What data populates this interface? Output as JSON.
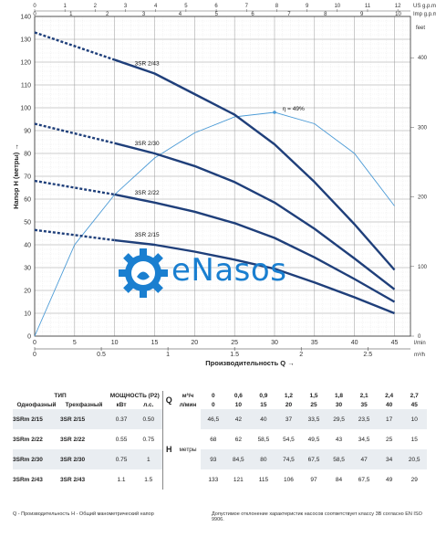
{
  "chart_data": {
    "type": "line",
    "x": [
      0,
      10,
      15,
      20,
      25,
      30,
      35,
      40,
      45
    ],
    "x_unit_primary": "l/min",
    "x_unit_secondary": "m³/h",
    "x_unit_us": "US g.p.m.",
    "x_unit_imp": "Imp g.p.m.",
    "ylabel": "Напор H (метры)",
    "xlabel": "Производительность Q",
    "right_unit": "feet",
    "ylim": [
      0,
      140
    ],
    "xlim": [
      0,
      47
    ],
    "y_ticks": [
      0,
      10,
      20,
      30,
      40,
      50,
      60,
      70,
      80,
      90,
      100,
      110,
      120,
      130,
      140
    ],
    "x_ticks_lmin": [
      0,
      5,
      10,
      15,
      20,
      25,
      30,
      35,
      40,
      45
    ],
    "x_ticks_m3h": [
      "0",
      "0.5",
      "1",
      "1.5",
      "2",
      "2.5"
    ],
    "x_ticks_us": [
      "0",
      "1",
      "2",
      "3",
      "4",
      "5",
      "6",
      "7",
      "8",
      "9",
      "10",
      "11",
      "12"
    ],
    "x_ticks_imp": [
      "0",
      "1",
      "2",
      "3",
      "4",
      "5",
      "6",
      "7",
      "8",
      "9",
      "10"
    ],
    "feet_ticks": [
      "0",
      "100",
      "200",
      "300",
      "400"
    ],
    "grid": true,
    "series": [
      {
        "name": "3SR 2/15",
        "values": [
          46.5,
          42,
          40,
          37,
          33.5,
          29.5,
          23.5,
          17,
          10
        ],
        "color": "#1f3f7a"
      },
      {
        "name": "3SR 2/22",
        "values": [
          68,
          62,
          58.5,
          54.5,
          49.5,
          43,
          34.5,
          25,
          15
        ],
        "color": "#1f3f7a"
      },
      {
        "name": "3SR 2/30",
        "values": [
          93,
          84.5,
          80,
          74.5,
          67.5,
          58.5,
          47,
          34,
          20.5
        ],
        "color": "#1f3f7a"
      },
      {
        "name": "3SR 2/43",
        "values": [
          133,
          121,
          115,
          106,
          97,
          84,
          67.5,
          49,
          29
        ],
        "color": "#1f3f7a"
      }
    ],
    "efficiency": {
      "label": "η = 49%",
      "x": [
        0,
        5,
        10,
        15,
        20,
        25,
        30,
        35,
        40,
        45
      ],
      "values": [
        0,
        40,
        62,
        78,
        89,
        96,
        98,
        93,
        80,
        57
      ],
      "color": "#4a9ad6"
    }
  },
  "logo": {
    "text": "eNasos",
    "color": "#1a7fd0"
  },
  "table": {
    "type_header": "ТИП",
    "power_header": "МОЩНОСТЬ (P2)",
    "single_phase": "Однофазный",
    "three_phase": "Трехфазный",
    "kw": "кВт",
    "hp": "л.с.",
    "q_label": "Q",
    "h_label": "H",
    "m3h": "м³/ч",
    "lmin": "л/мин",
    "meters": "метры",
    "q_m3h": [
      "0",
      "0,6",
      "0,9",
      "1,2",
      "1,5",
      "1,8",
      "2,1",
      "2,4",
      "2,7"
    ],
    "q_lmin": [
      "0",
      "10",
      "15",
      "20",
      "25",
      "30",
      "35",
      "40",
      "45"
    ],
    "rows": [
      {
        "single": "3SRm 2/15",
        "three": "3SR 2/15",
        "kw": "0.37",
        "hp": "0.50",
        "h": [
          "46,5",
          "42",
          "40",
          "37",
          "33,5",
          "29,5",
          "23,5",
          "17",
          "10"
        ]
      },
      {
        "single": "3SRm 2/22",
        "three": "3SR 2/22",
        "kw": "0.55",
        "hp": "0.75",
        "h": [
          "68",
          "62",
          "58,5",
          "54,5",
          "49,5",
          "43",
          "34,5",
          "25",
          "15"
        ]
      },
      {
        "single": "3SRm 2/30",
        "three": "3SR 2/30",
        "kw": "0.75",
        "hp": "1",
        "h": [
          "93",
          "84,5",
          "80",
          "74,5",
          "67,5",
          "58,5",
          "47",
          "34",
          "20,5"
        ]
      },
      {
        "single": "3SRm 2/43",
        "three": "3SR 2/43",
        "kw": "1.1",
        "hp": "1.5",
        "h": [
          "133",
          "121",
          "115",
          "106",
          "97",
          "84",
          "67,5",
          "49",
          "29"
        ]
      }
    ]
  },
  "footnote_left": "Q - Производительность   H - Общий манометрический напор",
  "footnote_right": "Допустимое отклонение характеристик насосов соответствует классу 3B согласно EN ISO 9906."
}
